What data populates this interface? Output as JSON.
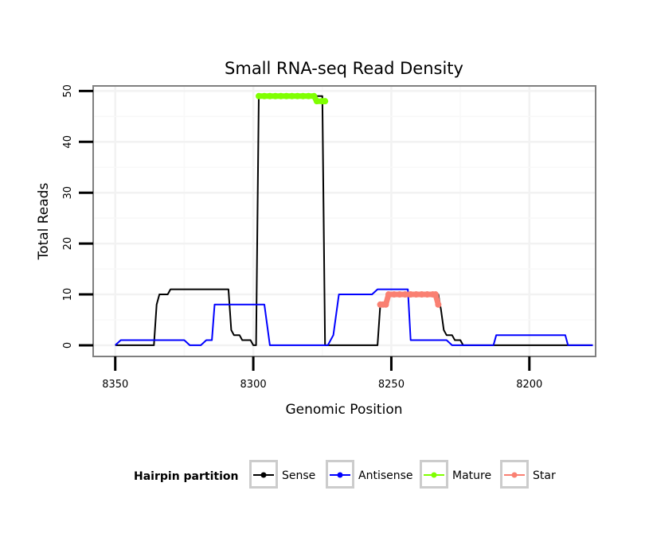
{
  "chart_data": {
    "type": "line",
    "title": "Small RNA-seq Read Density",
    "xlabel": "Genomic Position",
    "ylabel": "Total Reads",
    "xlim": [
      8358,
      8176
    ],
    "ylim": [
      -2.2,
      51
    ],
    "x_reversed": true,
    "x_ticks": [
      8350,
      8300,
      8250,
      8200
    ],
    "y_ticks": [
      0,
      10,
      20,
      30,
      40,
      50
    ],
    "grid": true,
    "legend": {
      "title": "Hairpin partition",
      "position": "bottom",
      "entries": [
        "Sense",
        "Antisense",
        "Mature",
        "Star"
      ]
    },
    "series": [
      {
        "name": "Sense",
        "color": "#000000",
        "style": "line",
        "points": [
          [
            8350,
            0
          ],
          [
            8336,
            0
          ],
          [
            8335,
            8
          ],
          [
            8334,
            10
          ],
          [
            8331,
            10
          ],
          [
            8330,
            11
          ],
          [
            8309,
            11
          ],
          [
            8308,
            3
          ],
          [
            8307,
            2
          ],
          [
            8305,
            2
          ],
          [
            8304,
            1
          ],
          [
            8301,
            1
          ],
          [
            8300,
            0
          ],
          [
            8299,
            0
          ],
          [
            8298,
            49
          ],
          [
            8275,
            49
          ],
          [
            8274,
            0
          ],
          [
            8255,
            0
          ],
          [
            8254,
            8
          ],
          [
            8252,
            8
          ],
          [
            8251,
            10
          ],
          [
            8233,
            10
          ],
          [
            8232,
            7
          ],
          [
            8231,
            3
          ],
          [
            8230,
            2
          ],
          [
            8228,
            2
          ],
          [
            8227,
            1
          ],
          [
            8225,
            1
          ],
          [
            8224,
            0
          ],
          [
            8177,
            0
          ]
        ]
      },
      {
        "name": "Antisense",
        "color": "#0000ff",
        "style": "line",
        "points": [
          [
            8350,
            0
          ],
          [
            8348,
            1
          ],
          [
            8337,
            1
          ],
          [
            8325,
            1
          ],
          [
            8323,
            0
          ],
          [
            8319,
            0
          ],
          [
            8317,
            1
          ],
          [
            8315,
            1
          ],
          [
            8314,
            8
          ],
          [
            8296,
            8
          ],
          [
            8294,
            0
          ],
          [
            8274,
            0
          ],
          [
            8273,
            0
          ],
          [
            8271,
            2
          ],
          [
            8269,
            10
          ],
          [
            8259,
            10
          ],
          [
            8257,
            10
          ],
          [
            8255,
            11
          ],
          [
            8244,
            11
          ],
          [
            8243,
            1
          ],
          [
            8230,
            1
          ],
          [
            8228,
            0
          ],
          [
            8213,
            0
          ],
          [
            8212,
            2
          ],
          [
            8187,
            2
          ],
          [
            8186,
            0
          ],
          [
            8177,
            0
          ]
        ]
      },
      {
        "name": "Mature",
        "color": "#7fff00",
        "style": "points",
        "points": [
          [
            8298,
            49
          ],
          [
            8296,
            49
          ],
          [
            8294,
            49
          ],
          [
            8292,
            49
          ],
          [
            8290,
            49
          ],
          [
            8288,
            49
          ],
          [
            8286,
            49
          ],
          [
            8284,
            49
          ],
          [
            8282,
            49
          ],
          [
            8280,
            49
          ],
          [
            8278,
            49
          ],
          [
            8277,
            48
          ],
          [
            8275,
            48
          ],
          [
            8274,
            48
          ]
        ]
      },
      {
        "name": "Star",
        "color": "#fa8072",
        "style": "points",
        "points": [
          [
            8254,
            8
          ],
          [
            8253,
            8
          ],
          [
            8252,
            8
          ],
          [
            8251,
            10
          ],
          [
            8249,
            10
          ],
          [
            8247,
            10
          ],
          [
            8245,
            10
          ],
          [
            8243,
            10
          ],
          [
            8241,
            10
          ],
          [
            8239,
            10
          ],
          [
            8237,
            10
          ],
          [
            8235,
            10
          ],
          [
            8234,
            10
          ],
          [
            8233,
            8
          ]
        ]
      }
    ]
  }
}
